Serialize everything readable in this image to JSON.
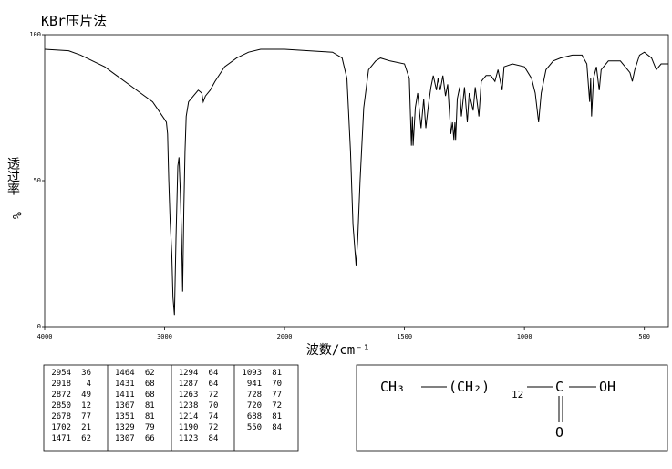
{
  "chart_data": {
    "type": "line",
    "title": "KBr压片法",
    "x_label": "波数/cm⁻¹",
    "y_label": "透过率",
    "y_unit": "%",
    "xlim": [
      4000,
      400
    ],
    "x_break": 2000,
    "xticks": [
      4000,
      3000,
      2000,
      1500,
      1000,
      500
    ],
    "ylim": [
      0,
      100
    ],
    "yticks": [
      0,
      50,
      100
    ],
    "color": "#000000",
    "x": [
      4000,
      3800,
      3700,
      3600,
      3500,
      3400,
      3300,
      3200,
      3100,
      3050,
      3000,
      2985,
      2975,
      2965,
      2954,
      2940,
      2930,
      2918,
      2905,
      2890,
      2880,
      2872,
      2865,
      2858,
      2850,
      2840,
      2830,
      2820,
      2800,
      2760,
      2720,
      2690,
      2678,
      2660,
      2620,
      2580,
      2500,
      2400,
      2300,
      2200,
      2100,
      2000,
      1900,
      1800,
      1760,
      1740,
      1725,
      1715,
      1702,
      1695,
      1685,
      1670,
      1650,
      1620,
      1600,
      1560,
      1500,
      1480,
      1471,
      1467,
      1464,
      1455,
      1445,
      1431,
      1420,
      1411,
      1400,
      1390,
      1380,
      1367,
      1360,
      1351,
      1340,
      1329,
      1320,
      1307,
      1300,
      1294,
      1290,
      1287,
      1280,
      1270,
      1263,
      1250,
      1238,
      1230,
      1214,
      1205,
      1190,
      1180,
      1160,
      1140,
      1123,
      1110,
      1093,
      1085,
      1050,
      1000,
      970,
      955,
      941,
      930,
      910,
      880,
      850,
      800,
      760,
      740,
      728,
      724,
      720,
      712,
      700,
      688,
      680,
      650,
      600,
      560,
      550,
      540,
      520,
      500,
      470,
      450,
      430,
      400
    ],
    "values": [
      95,
      94.5,
      93,
      91,
      89,
      86,
      83,
      80,
      77,
      74,
      71,
      70,
      66,
      50,
      36,
      25,
      10,
      4,
      30,
      55,
      58,
      49,
      40,
      30,
      12,
      40,
      60,
      72,
      77,
      79,
      81,
      80,
      77,
      79,
      81,
      84,
      89,
      92,
      94,
      95,
      95,
      95,
      94.5,
      94,
      92,
      85,
      60,
      35,
      21,
      30,
      50,
      75,
      88,
      91,
      92,
      91,
      90,
      85,
      62,
      72,
      62,
      75,
      80,
      68,
      78,
      68,
      76,
      82,
      86,
      81,
      85,
      81,
      86,
      79,
      83,
      66,
      70,
      64,
      70,
      64,
      78,
      82,
      72,
      82,
      70,
      80,
      74,
      82,
      72,
      84,
      86,
      86,
      84,
      88,
      81,
      89,
      90,
      89,
      85,
      80,
      70,
      80,
      88,
      91,
      92,
      93,
      93,
      90,
      77,
      85,
      72,
      85,
      89,
      81,
      88,
      91,
      91,
      87,
      84,
      88,
      93,
      94,
      92,
      88,
      90,
      90
    ]
  },
  "peak_table": {
    "rows": [
      [
        "2954",
        "36"
      ],
      [
        "2918",
        "4"
      ],
      [
        "2872",
        "49"
      ],
      [
        "2850",
        "12"
      ],
      [
        "2678",
        "77"
      ],
      [
        "1702",
        "21"
      ],
      [
        "1471",
        "62"
      ],
      [
        "1464",
        "62"
      ],
      [
        "1431",
        "68"
      ],
      [
        "1411",
        "68"
      ],
      [
        "1367",
        "81"
      ],
      [
        "1351",
        "81"
      ],
      [
        "1329",
        "79"
      ],
      [
        "1307",
        "66"
      ],
      [
        "1294",
        "64"
      ],
      [
        "1287",
        "64"
      ],
      [
        "1263",
        "72"
      ],
      [
        "1238",
        "70"
      ],
      [
        "1214",
        "74"
      ],
      [
        "1190",
        "72"
      ],
      [
        "1123",
        "84"
      ],
      [
        "1093",
        "81"
      ],
      [
        "941",
        "70"
      ],
      [
        "728",
        "77"
      ],
      [
        "720",
        "72"
      ],
      [
        "688",
        "81"
      ],
      [
        "550",
        "84"
      ]
    ]
  },
  "structure": {
    "ch3": "CH₃",
    "ch2": "(CH₂)",
    "n": "12",
    "carbon": "C",
    "oh": "OH",
    "oxygen": "O"
  }
}
